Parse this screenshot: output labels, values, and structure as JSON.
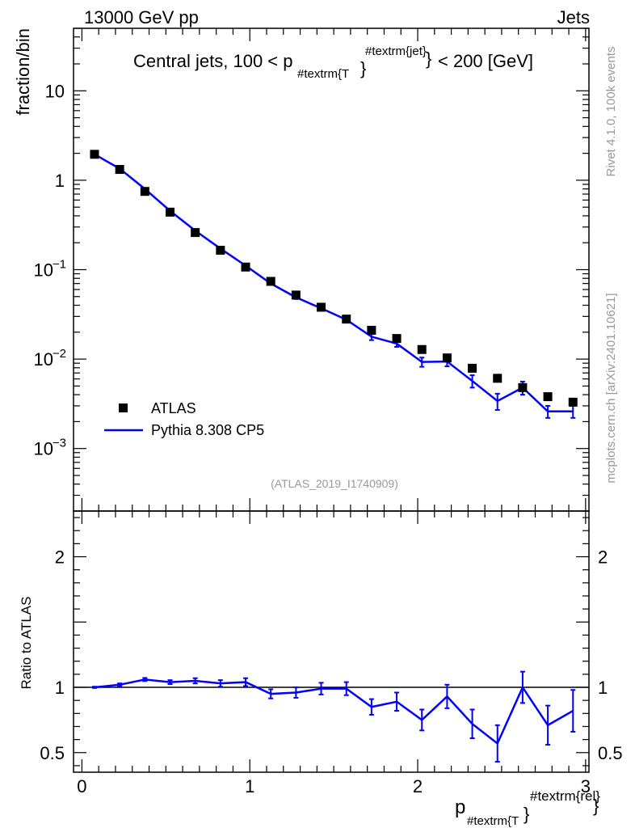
{
  "header": {
    "left_title": "13000 GeV pp",
    "right_title": "Jets"
  },
  "side_notes": {
    "version": "Rivet 4.1.0,  100k events",
    "source": "mcplots.cern.ch [arXiv:2401.10621]"
  },
  "analysis_id": "(ATLAS_2019_I1740909)",
  "plot_title": {
    "prefix": "Central jets, 100 < p",
    "subscript": "#textrm{T",
    "superscript": "#textrm{jet}",
    "suffix": "< 200 [GeV]"
  },
  "x_label": {
    "base": "p",
    "subscript": "#textrm{T",
    "superscript": "#textrm{rel}"
  },
  "y_label_main": "fraction/bin",
  "y_label_ratio": "Ratio to ATLAS",
  "legend": {
    "data_label": "ATLAS",
    "mc_label": "Pythia 8.308 CP5"
  },
  "colors": {
    "data": "#000000",
    "mc": "#0000ff",
    "note": "#999999"
  },
  "main_y_ticks": [
    {
      "value": 0.001,
      "base": "10",
      "exp": "−3"
    },
    {
      "value": 0.01,
      "base": "10",
      "exp": "−2"
    },
    {
      "value": 0.1,
      "base": "10",
      "exp": "−1"
    },
    {
      "value": 1,
      "base": "1",
      "exp": ""
    },
    {
      "value": 10,
      "base": "10",
      "exp": ""
    }
  ],
  "ratio_y_ticks": [
    {
      "value": 0.5,
      "label": "0.5"
    },
    {
      "value": 1,
      "label": "1"
    },
    {
      "value": 2,
      "label": "2"
    }
  ],
  "x_ticks": [
    {
      "value": 0,
      "label": "0"
    },
    {
      "value": 1,
      "label": "1"
    },
    {
      "value": 2,
      "label": "2"
    },
    {
      "value": 3,
      "label": "3"
    }
  ],
  "chart_data": {
    "type": "scatter",
    "xlim": [
      -0.05,
      3.02
    ],
    "ylim_main": [
      0.0002,
      50
    ],
    "ylim_ratio": [
      0.35,
      2.35
    ],
    "ylog_main": true,
    "x": [
      0.075,
      0.225,
      0.375,
      0.525,
      0.675,
      0.825,
      0.975,
      1.125,
      1.275,
      1.425,
      1.575,
      1.725,
      1.875,
      2.025,
      2.175,
      2.325,
      2.475,
      2.625,
      2.775,
      2.925
    ],
    "x_edges": [
      0.0,
      0.15,
      0.3,
      0.45,
      0.6,
      0.75,
      0.9,
      1.05,
      1.2,
      1.35,
      1.5,
      1.65,
      1.8,
      1.95,
      2.1,
      2.25,
      2.4,
      2.55,
      2.7,
      2.85,
      3.0
    ],
    "series": [
      {
        "name": "ATLAS",
        "values": [
          1.95,
          1.32,
          0.75,
          0.44,
          0.26,
          0.165,
          0.107,
          0.074,
          0.052,
          0.038,
          0.028,
          0.021,
          0.017,
          0.0128,
          0.0103,
          0.0079,
          0.0061,
          0.0048,
          0.0038,
          0.0033
        ]
      },
      {
        "name": "Pythia 8.308 CP5",
        "values": [
          1.95,
          1.35,
          0.8,
          0.455,
          0.273,
          0.172,
          0.111,
          0.07,
          0.049,
          0.037,
          0.0276,
          0.0178,
          0.0149,
          0.0093,
          0.0094,
          0.0057,
          0.0034,
          0.0048,
          0.0026,
          0.0026
        ],
        "errors": [
          0.02,
          0.02,
          0.01,
          0.006,
          0.004,
          0.003,
          0.002,
          0.002,
          0.002,
          0.0015,
          0.0013,
          0.0015,
          0.0012,
          0.0011,
          0.0011,
          0.0009,
          0.0007,
          0.0008,
          0.0004,
          0.0004
        ]
      }
    ],
    "ratio": {
      "reference": 1,
      "values": [
        1.0,
        1.02,
        1.06,
        1.04,
        1.05,
        1.03,
        1.04,
        0.95,
        0.96,
        0.99,
        0.99,
        0.85,
        0.89,
        0.75,
        0.93,
        0.72,
        0.57,
        1.0,
        0.71,
        0.82
      ],
      "errors": [
        0.005,
        0.01,
        0.012,
        0.015,
        0.02,
        0.025,
        0.03,
        0.035,
        0.04,
        0.045,
        0.05,
        0.06,
        0.07,
        0.08,
        0.09,
        0.11,
        0.14,
        0.12,
        0.15,
        0.16
      ]
    }
  }
}
